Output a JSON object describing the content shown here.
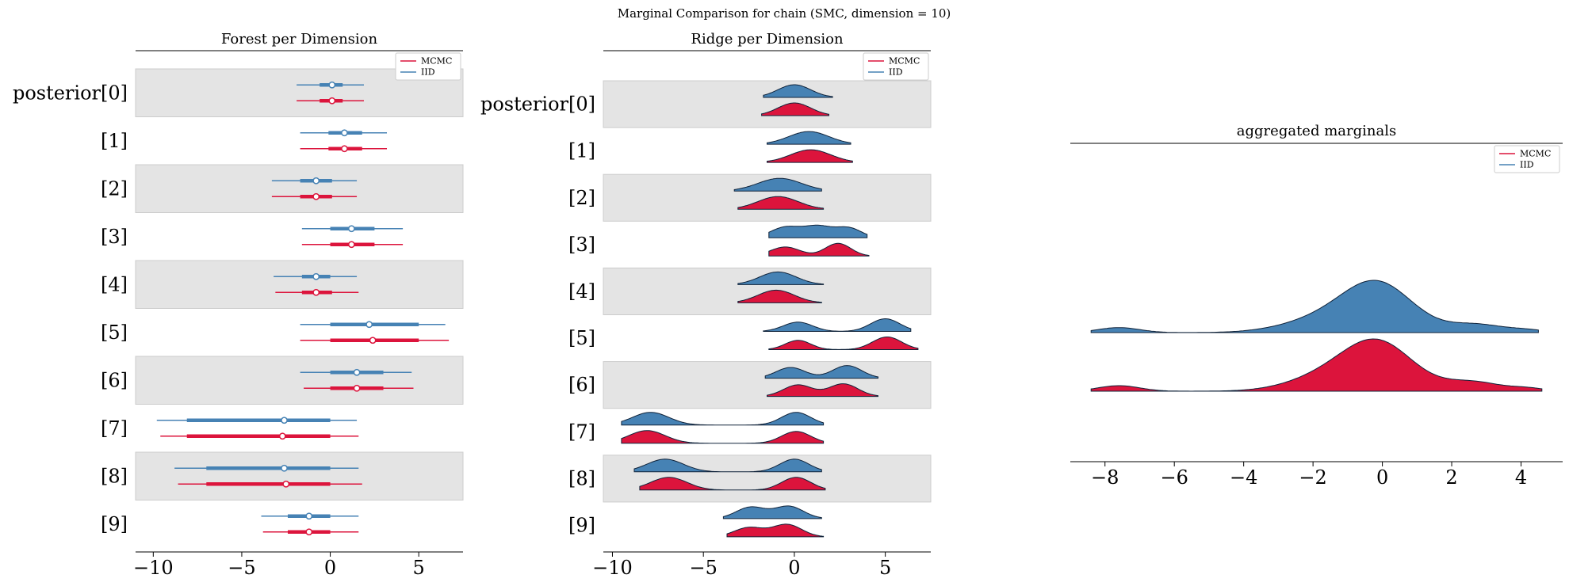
{
  "figure": {
    "suptitle": "Marginal Comparison for chain (SMC, dimension = 10)"
  },
  "colors": {
    "mcmc": "#dc143c",
    "iid": "#4682b4",
    "band": "#e4e4e4",
    "band_edge": "#cccccc"
  },
  "chart_data": [
    {
      "type": "forest",
      "title": "Forest per Dimension",
      "xlim": [
        -11,
        7.5
      ],
      "xticks": [
        -10,
        -5,
        0,
        5
      ],
      "xtick_labels": [
        "−10",
        "−5",
        "0",
        "5"
      ],
      "legend": {
        "placement": "top-right",
        "entries": [
          "MCMC",
          "IID"
        ]
      },
      "categories": [
        "posterior[0]",
        "[1]",
        "[2]",
        "[3]",
        "[4]",
        "[5]",
        "[6]",
        "[7]",
        "[8]",
        "[9]"
      ],
      "series": [
        {
          "name": "MCMC",
          "color_key": "mcmc",
          "points": [
            {
              "hdi94": [
                -1.9,
                1.9
              ],
              "q_inner": [
                -0.6,
                0.7
              ],
              "median": 0.1
            },
            {
              "hdi94": [
                -1.7,
                3.2
              ],
              "q_inner": [
                -0.1,
                1.8
              ],
              "median": 0.8
            },
            {
              "hdi94": [
                -3.3,
                1.5
              ],
              "q_inner": [
                -1.7,
                0.1
              ],
              "median": -0.8
            },
            {
              "hdi94": [
                -1.6,
                4.1
              ],
              "q_inner": [
                0.0,
                2.5
              ],
              "median": 1.2
            },
            {
              "hdi94": [
                -3.1,
                1.6
              ],
              "q_inner": [
                -1.6,
                0.1
              ],
              "median": -0.8
            },
            {
              "hdi94": [
                -1.7,
                6.7
              ],
              "q_inner": [
                0.0,
                5.0
              ],
              "median": 2.4
            },
            {
              "hdi94": [
                -1.5,
                4.7
              ],
              "q_inner": [
                0.0,
                3.0
              ],
              "median": 1.5
            },
            {
              "hdi94": [
                -9.6,
                1.6
              ],
              "q_inner": [
                -8.1,
                0.0
              ],
              "median": -2.7
            },
            {
              "hdi94": [
                -8.6,
                1.8
              ],
              "q_inner": [
                -7.0,
                0.0
              ],
              "median": -2.5
            },
            {
              "hdi94": [
                -3.8,
                1.6
              ],
              "q_inner": [
                -2.4,
                0.0
              ],
              "median": -1.2
            }
          ]
        },
        {
          "name": "IID",
          "color_key": "iid",
          "points": [
            {
              "hdi94": [
                -1.9,
                1.9
              ],
              "q_inner": [
                -0.6,
                0.7
              ],
              "median": 0.1
            },
            {
              "hdi94": [
                -1.7,
                3.2
              ],
              "q_inner": [
                -0.1,
                1.8
              ],
              "median": 0.8
            },
            {
              "hdi94": [
                -3.3,
                1.5
              ],
              "q_inner": [
                -1.7,
                0.1
              ],
              "median": -0.8
            },
            {
              "hdi94": [
                -1.6,
                4.1
              ],
              "q_inner": [
                0.0,
                2.5
              ],
              "median": 1.2
            },
            {
              "hdi94": [
                -3.2,
                1.5
              ],
              "q_inner": [
                -1.6,
                0.0
              ],
              "median": -0.8
            },
            {
              "hdi94": [
                -1.7,
                6.5
              ],
              "q_inner": [
                0.0,
                5.0
              ],
              "median": 2.2
            },
            {
              "hdi94": [
                -1.7,
                4.6
              ],
              "q_inner": [
                0.0,
                3.0
              ],
              "median": 1.5
            },
            {
              "hdi94": [
                -9.8,
                1.5
              ],
              "q_inner": [
                -8.1,
                0.0
              ],
              "median": -2.6
            },
            {
              "hdi94": [
                -8.8,
                1.6
              ],
              "q_inner": [
                -7.0,
                0.0
              ],
              "median": -2.6
            },
            {
              "hdi94": [
                -3.9,
                1.6
              ],
              "q_inner": [
                -2.4,
                0.0
              ],
              "median": -1.2
            }
          ]
        }
      ]
    },
    {
      "type": "ridge",
      "title": "Ridge per Dimension",
      "xlim": [
        -10.5,
        7.5
      ],
      "xticks": [
        -10,
        -5,
        0,
        5
      ],
      "xtick_labels": [
        "−10",
        "−5",
        "0",
        "5"
      ],
      "legend": {
        "placement": "top-right",
        "entries": [
          "MCMC",
          "IID"
        ]
      },
      "categories": [
        "posterior[0]",
        "[1]",
        "[2]",
        "[3]",
        "[4]",
        "[5]",
        "[6]",
        "[7]",
        "[8]",
        "[9]"
      ],
      "series": [
        {
          "name": "IID",
          "color_key": "iid",
          "densities": [
            {
              "range": [
                -1.7,
                2.1
              ],
              "modes": [
                [
                  0.0,
                  0.9,
                  1.0
                ]
              ]
            },
            {
              "range": [
                -1.5,
                3.1
              ],
              "modes": [
                [
                  0.8,
                  1.1,
                  1.0
                ]
              ]
            },
            {
              "range": [
                -3.3,
                1.5
              ],
              "modes": [
                [
                  -0.8,
                  1.2,
                  1.0
                ]
              ]
            },
            {
              "range": [
                -1.4,
                4.0
              ],
              "modes": [
                [
                  -0.5,
                  0.8,
                  0.55
                ],
                [
                  1.3,
                  0.8,
                  0.6
                ],
                [
                  3.0,
                  0.7,
                  0.5
                ]
              ]
            },
            {
              "range": [
                -3.1,
                1.6
              ],
              "modes": [
                [
                  -0.9,
                  1.0,
                  1.0
                ]
              ]
            },
            {
              "range": [
                -1.7,
                6.4
              ],
              "modes": [
                [
                  0.2,
                  0.8,
                  0.55
                ],
                [
                  5.0,
                  0.8,
                  0.75
                ]
              ]
            },
            {
              "range": [
                -1.6,
                4.6
              ],
              "modes": [
                [
                  -0.2,
                  0.8,
                  0.55
                ],
                [
                  2.9,
                  0.8,
                  0.65
                ]
              ]
            },
            {
              "range": [
                -9.5,
                1.6
              ],
              "modes": [
                [
                  -7.9,
                  1.0,
                  0.75
                ],
                [
                  0.1,
                  0.8,
                  0.75
                ]
              ]
            },
            {
              "range": [
                -8.8,
                1.5
              ],
              "modes": [
                [
                  -7.1,
                  1.0,
                  0.7
                ],
                [
                  0.0,
                  0.8,
                  0.7
                ]
              ]
            },
            {
              "range": [
                -3.9,
                1.5
              ],
              "modes": [
                [
                  -2.4,
                  0.8,
                  0.7
                ],
                [
                  -0.3,
                  0.8,
                  0.75
                ]
              ]
            }
          ]
        },
        {
          "name": "MCMC",
          "color_key": "mcmc",
          "densities": [
            {
              "range": [
                -1.8,
                1.9
              ],
              "modes": [
                [
                  0.0,
                  0.9,
                  1.0
                ]
              ]
            },
            {
              "range": [
                -1.5,
                3.2
              ],
              "modes": [
                [
                  0.9,
                  1.1,
                  1.0
                ]
              ]
            },
            {
              "range": [
                -3.1,
                1.6
              ],
              "modes": [
                [
                  -0.9,
                  1.1,
                  1.0
                ]
              ]
            },
            {
              "range": [
                -1.4,
                4.1
              ],
              "modes": [
                [
                  -0.5,
                  0.8,
                  0.5
                ],
                [
                  2.4,
                  0.7,
                  0.7
                ]
              ]
            },
            {
              "range": [
                -3.1,
                1.5
              ],
              "modes": [
                [
                  -1.0,
                  1.0,
                  1.0
                ]
              ]
            },
            {
              "range": [
                -1.4,
                6.8
              ],
              "modes": [
                [
                  0.2,
                  0.7,
                  0.55
                ],
                [
                  5.1,
                  0.8,
                  0.75
                ]
              ]
            },
            {
              "range": [
                -1.5,
                4.6
              ],
              "modes": [
                [
                  0.2,
                  0.8,
                  0.55
                ],
                [
                  2.7,
                  0.8,
                  0.6
                ]
              ]
            },
            {
              "range": [
                -9.5,
                1.6
              ],
              "modes": [
                [
                  -8.1,
                  1.0,
                  0.75
                ],
                [
                  0.1,
                  0.8,
                  0.7
                ]
              ]
            },
            {
              "range": [
                -8.5,
                1.7
              ],
              "modes": [
                [
                  -6.9,
                  1.0,
                  0.7
                ],
                [
                  0.1,
                  0.8,
                  0.7
                ]
              ]
            },
            {
              "range": [
                -3.7,
                1.6
              ],
              "modes": [
                [
                  -2.5,
                  0.8,
                  0.6
                ],
                [
                  -0.4,
                  0.8,
                  0.8
                ]
              ]
            }
          ]
        }
      ]
    },
    {
      "type": "area",
      "title": "aggregated marginals",
      "xlim": [
        -9,
        5.2
      ],
      "xticks": [
        -8,
        -6,
        -4,
        -2,
        0,
        2,
        4
      ],
      "xtick_labels": [
        "−8",
        "−6",
        "−4",
        "−2",
        "0",
        "2",
        "4"
      ],
      "legend": {
        "placement": "top-right",
        "entries": [
          "MCMC",
          "IID"
        ]
      },
      "series": [
        {
          "name": "IID",
          "color_key": "iid",
          "range": [
            -8.4,
            4.5
          ],
          "modes": [
            [
              -0.1,
              1.0,
              1.0
            ],
            [
              -1.6,
              1.2,
              0.3
            ],
            [
              -7.6,
              0.6,
              0.11
            ],
            [
              2.7,
              0.8,
              0.18
            ],
            [
              4.2,
              0.5,
              0.05
            ]
          ]
        },
        {
          "name": "MCMC",
          "color_key": "mcmc",
          "range": [
            -8.4,
            4.6
          ],
          "modes": [
            [
              -0.1,
              1.0,
              1.0
            ],
            [
              -1.6,
              1.1,
              0.3
            ],
            [
              -7.6,
              0.6,
              0.12
            ],
            [
              2.6,
              0.8,
              0.2
            ],
            [
              4.2,
              0.5,
              0.06
            ]
          ]
        }
      ]
    }
  ]
}
